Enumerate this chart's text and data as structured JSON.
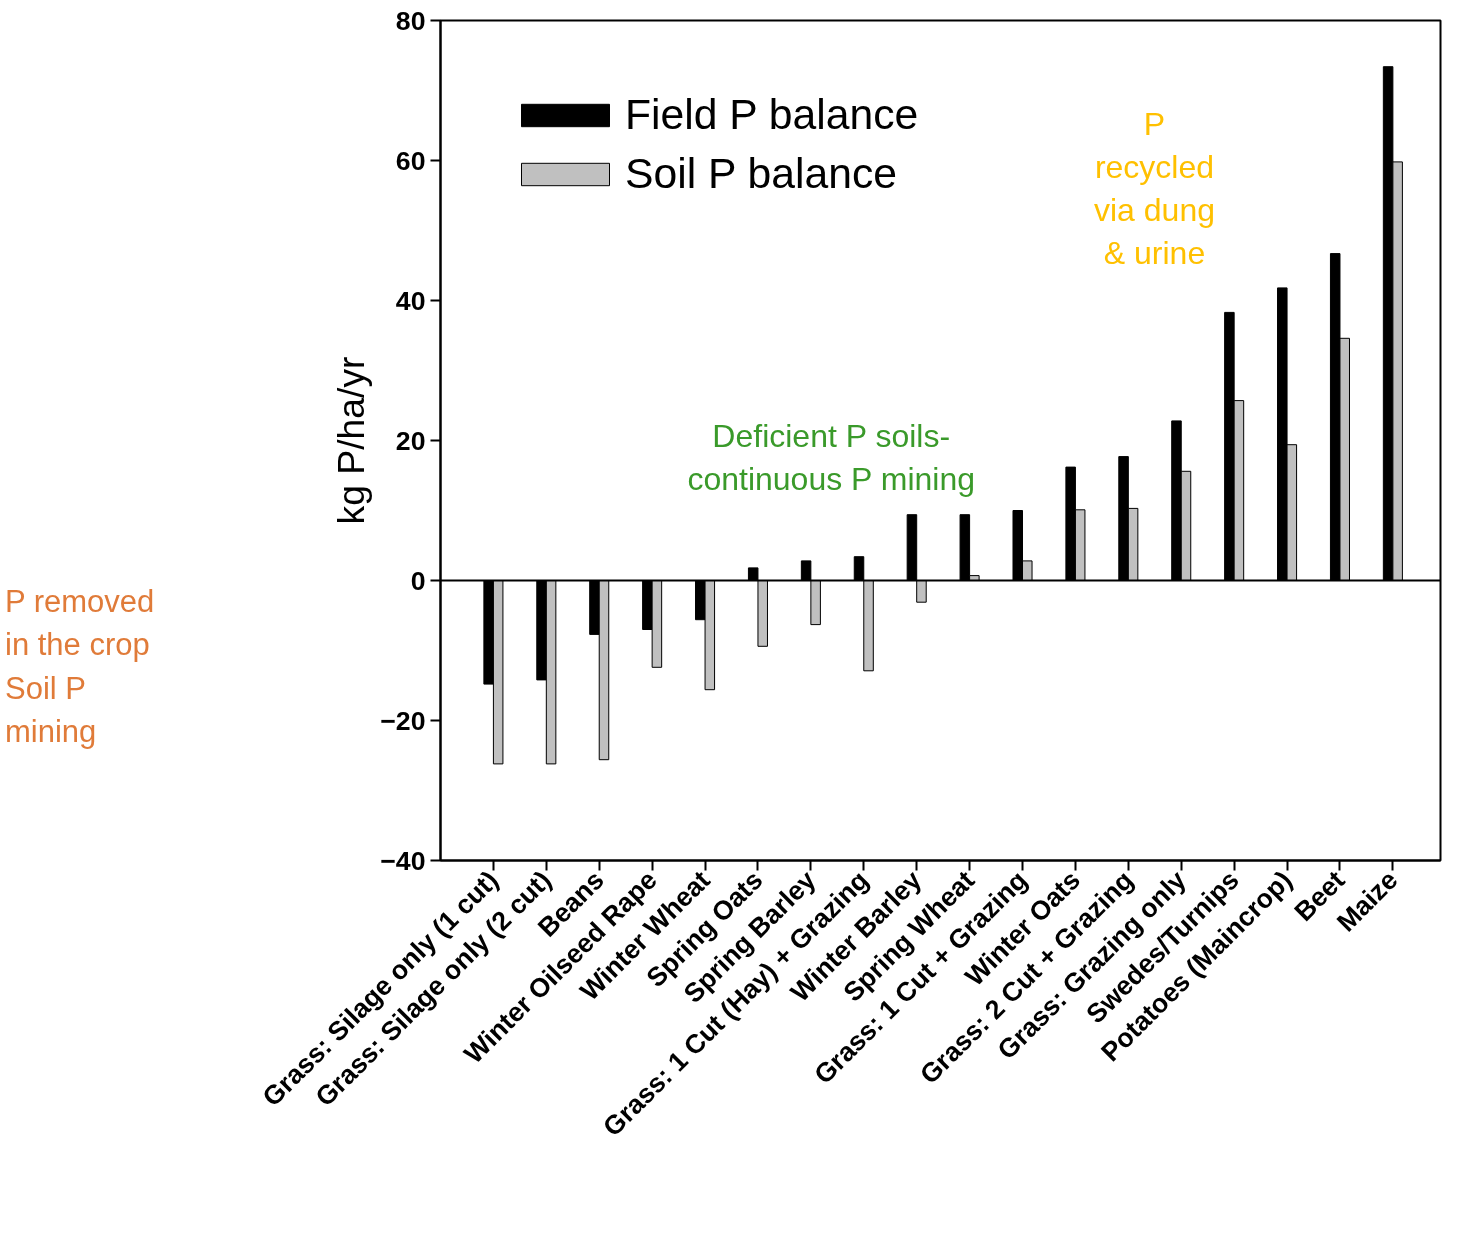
{
  "chart_data": {
    "type": "bar",
    "ylabel": "kg P/ha/yr",
    "categories": [
      "Grass: Silage only (1 cut)",
      "Grass: Silage only (2 cut)",
      "Beans",
      "Winter Oilseed Rape",
      "Winter Wheat",
      "Spring Oats",
      "Spring Barley",
      "Grass: 1 Cut (Hay) + Grazing",
      "Winter Barley",
      "Spring Wheat",
      "Grass: 1 Cut + Grazing",
      "Winter Oats",
      "Grass: 2 Cut + Grazing",
      "Grass: Grazing only",
      "Swedes/Turnips",
      "Potatoes (Maincrop)",
      "Beet",
      "Maize"
    ],
    "series": [
      {
        "name": "Field P balance",
        "color": "#000000",
        "values": [
          -14.8,
          -14.2,
          -7.7,
          -7.0,
          -5.6,
          1.8,
          2.8,
          3.4,
          9.4,
          9.4,
          10.0,
          16.2,
          17.7,
          22.8,
          38.3,
          41.8,
          46.7,
          73.4
        ]
      },
      {
        "name": "Soil P balance",
        "color": "#c0c0c0",
        "values": [
          -26.2,
          -26.2,
          -25.6,
          -12.4,
          -15.6,
          -9.4,
          -6.3,
          -12.9,
          -3.1,
          0.7,
          2.8,
          10.1,
          10.3,
          15.6,
          25.7,
          19.4,
          34.6,
          59.8
        ]
      }
    ],
    "ylim": [
      -40,
      80
    ],
    "yticks": [
      -40,
      -20,
      0,
      20,
      40,
      60,
      80
    ],
    "grid": false,
    "legend": "top left",
    "ref_lines": [
      {
        "axis": "y",
        "value": 0
      }
    ],
    "annotations": [
      "P removed\nin the crop\nSoil P\nmining",
      "Deficient P soils-\ncontinuous P mining",
      "P\nrecycled\nvia dung\n& urine"
    ]
  }
}
